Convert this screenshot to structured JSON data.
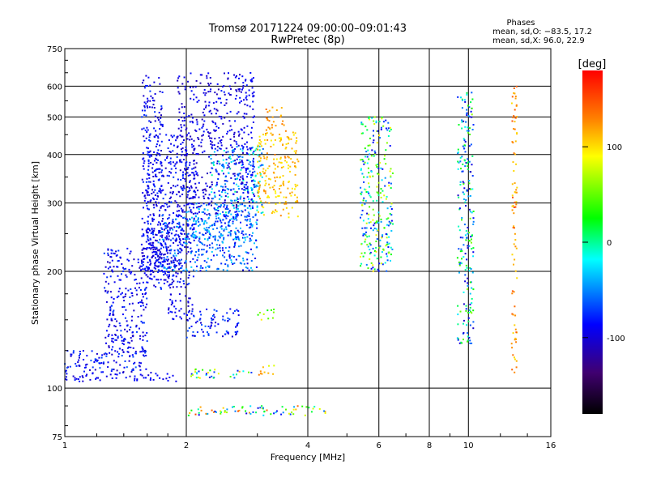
{
  "chart_data": {
    "type": "scatter",
    "title": "Tromsø 20171224 09:00:00–09:01:43",
    "subtitle": "RwPretec (8p)",
    "xlabel": "Frequency [MHz]",
    "ylabel": "Stationary phase Virtual Height [km]",
    "x_scale": "log",
    "y_scale": "log",
    "xlim": [
      1,
      16
    ],
    "ylim": [
      75,
      750
    ],
    "x_ticks": [
      1,
      2,
      4,
      6,
      8,
      10,
      16
    ],
    "y_ticks": [
      75,
      100,
      200,
      300,
      400,
      500,
      600,
      750
    ],
    "grid": true,
    "legend": {
      "heading": "Phases",
      "lines": [
        "mean, sd,O: −83.5, 17.2",
        "mean, sd,X:  96.0, 22.9"
      ]
    },
    "colorbar": {
      "label": "[deg]",
      "min": -180,
      "max": 180,
      "ticks": [
        100,
        0,
        -100
      ],
      "colors": [
        "#ff0000",
        "#ff8000",
        "#ffff00",
        "#00ff00",
        "#00ffff",
        "#0000ff",
        "#400070",
        "#000000"
      ]
    },
    "series": [
      {
        "clusters": [
          {
            "x": [
              1.0,
              1.9
            ],
            "y": [
              104,
              110
            ],
            "phase": [
              -105,
              -80
            ]
          },
          {
            "x": [
              1.0,
              1.6
            ],
            "y": [
              110,
              125
            ],
            "phase": [
              -110,
              -60
            ]
          },
          {
            "x": [
              1.25,
              1.6
            ],
            "y": [
              120,
              230
            ],
            "phase": [
              -110,
              -70
            ]
          },
          {
            "x": [
              1.6,
              2.1
            ],
            "y": [
              180,
              450
            ],
            "phase": [
              -110,
              -70
            ]
          },
          {
            "x": [
              1.55,
              1.75
            ],
            "y": [
              200,
              640
            ],
            "phase": [
              -110,
              -70
            ]
          },
          {
            "x": [
              1.55,
              1.95
            ],
            "y": [
              190,
              260
            ],
            "phase": [
              -110,
              -75
            ]
          },
          {
            "x": [
              1.9,
              2.8
            ],
            "y": [
              280,
              650
            ],
            "phase": [
              -115,
              -80
            ]
          },
          {
            "x": [
              1.7,
              3.0
            ],
            "y": [
              200,
              280
            ],
            "phase": [
              -100,
              -30
            ]
          },
          {
            "x": [
              2.0,
              3.0
            ],
            "y": [
              240,
              300
            ],
            "phase": [
              -90,
              -20
            ]
          },
          {
            "x": [
              2.3,
              3.1
            ],
            "y": [
              280,
              420
            ],
            "phase": [
              -80,
              0
            ]
          },
          {
            "x": [
              2.75,
              2.95
            ],
            "y": [
              300,
              650
            ],
            "phase": [
              -100,
              -80
            ]
          },
          {
            "x": [
              3.0,
              3.8
            ],
            "y": [
              275,
              460
            ],
            "phase": [
              90,
              130
            ]
          },
          {
            "x": [
              3.15,
              3.5
            ],
            "y": [
              460,
              530
            ],
            "phase": [
              110,
              140
            ]
          },
          {
            "x": [
              1.8,
              2.1
            ],
            "y": [
              150,
              175
            ],
            "phase": [
              -110,
              -80
            ]
          },
          {
            "x": [
              2.0,
              2.7
            ],
            "y": [
              135,
              160
            ],
            "phase": [
              -110,
              -60
            ]
          },
          {
            "x": [
              2.0,
              2.9
            ],
            "y": [
              106,
              112
            ],
            "phase": [
              -100,
              120
            ]
          },
          {
            "x": [
              3.0,
              3.3
            ],
            "y": [
              150,
              160
            ],
            "phase": [
              20,
              100
            ]
          },
          {
            "x": [
              3.0,
              3.3
            ],
            "y": [
              108,
              115
            ],
            "phase": [
              80,
              130
            ]
          },
          {
            "x": [
              2.0,
              4.5
            ],
            "y": [
              85,
              90
            ],
            "phase": [
              -100,
              160
            ]
          },
          {
            "x": [
              5.4,
              6.5
            ],
            "y": [
              200,
              500
            ],
            "phase": [
              -100,
              100
            ]
          },
          {
            "x": [
              9.4,
              10.3
            ],
            "y": [
              130,
              580
            ],
            "phase": [
              -110,
              60
            ]
          },
          {
            "x": [
              12.8,
              13.2
            ],
            "y": [
              105,
              600
            ],
            "phase": [
              100,
              150
            ]
          }
        ]
      }
    ]
  }
}
